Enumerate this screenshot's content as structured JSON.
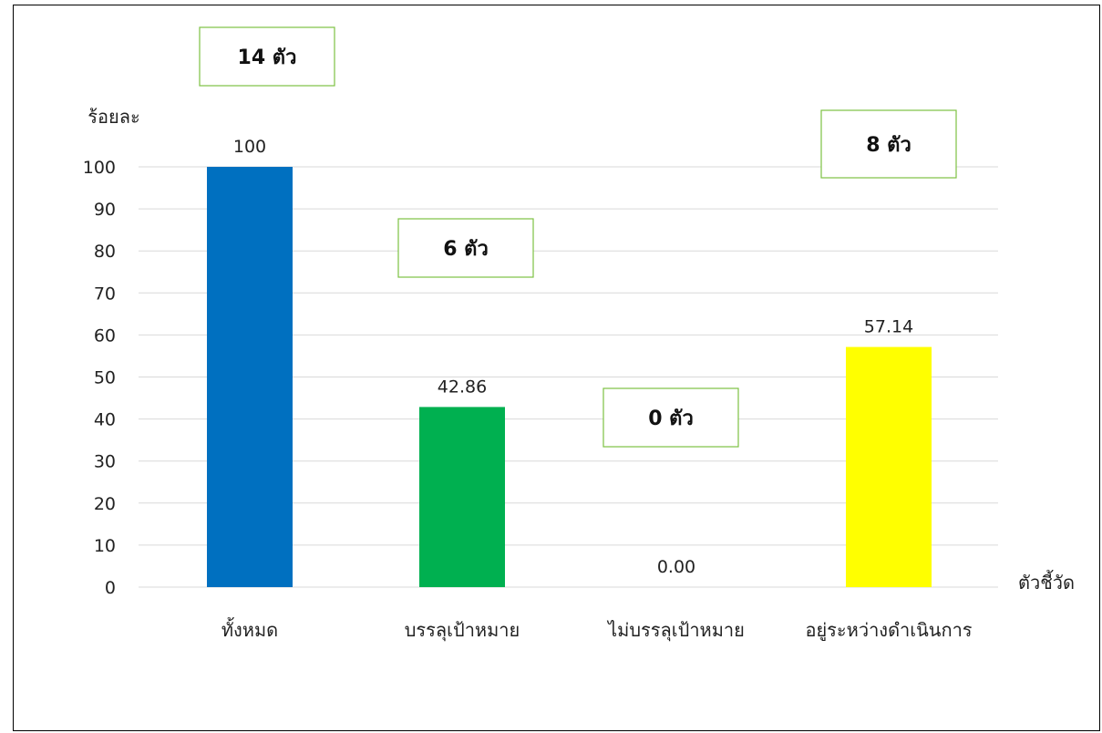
{
  "chart_data": {
    "type": "bar",
    "categories": [
      "ทั้งหมด",
      "บรรลุเป้าหมาย",
      "ไม่บรรลุเป้าหมาย",
      "อยู่ระหว่างดำเนินการ"
    ],
    "values": [
      100,
      42.86,
      0,
      57.14
    ],
    "value_labels": [
      "100",
      "42.86",
      "0.00",
      "57.14"
    ],
    "colors": [
      "#0070c0",
      "#00b050",
      "#00b050",
      "#ffff00"
    ],
    "count_labels": [
      "14 ตัว",
      "6 ตัว",
      "0 ตัว",
      "8 ตัว"
    ],
    "ylabel": "ร้อยละ",
    "xlabel": "ตัวชี้วัด",
    "ylim": [
      0,
      100
    ],
    "yticks": [
      0,
      10,
      20,
      30,
      40,
      50,
      60,
      70,
      80,
      90,
      100
    ],
    "grid": true,
    "gridline_color": "#d9d9d9",
    "box_border_color": "#7dc242"
  }
}
